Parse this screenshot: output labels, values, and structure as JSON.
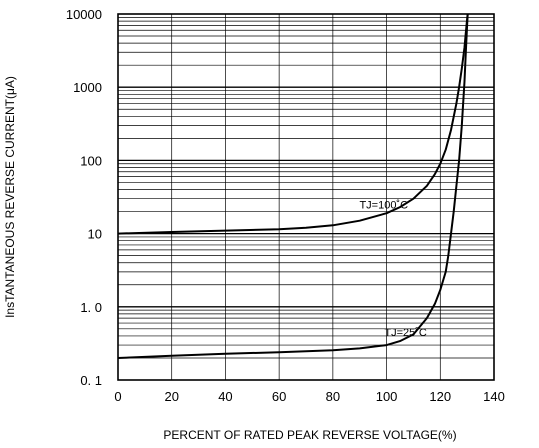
{
  "chart_data": {
    "type": "line",
    "xlabel": "PERCENT OF RATED PEAK REVERSE VOLTAGE(%)",
    "ylabel": "InsTANTANEOUS REVERSE CURRENT(μA)",
    "x_ticks": [
      "0",
      "20",
      "40",
      "60",
      "80",
      "100",
      "120",
      "140"
    ],
    "y_ticks": [
      "0. 1",
      "1. 0",
      "10",
      "100",
      "1000",
      "10000"
    ],
    "xlim": [
      0,
      140
    ],
    "ylim": [
      0.1,
      10000
    ],
    "y_scale": "log",
    "grid": true,
    "series": [
      {
        "name": "TJ=100˚C",
        "x": [
          0,
          20,
          40,
          60,
          70,
          80,
          90,
          100,
          105,
          110,
          115,
          118,
          120,
          122,
          124,
          126,
          127,
          128,
          129,
          129.5,
          130,
          130.2
        ],
        "y": [
          10,
          10.5,
          11,
          11.5,
          12,
          13,
          15,
          19,
          23,
          30,
          45,
          65,
          90,
          140,
          260,
          600,
          1000,
          1800,
          3500,
          5500,
          8500,
          10000
        ]
      },
      {
        "name": "TJ=25˚C",
        "x": [
          0,
          20,
          40,
          60,
          80,
          90,
          100,
          105,
          110,
          115,
          118,
          120,
          122,
          123,
          124,
          125,
          126,
          127,
          128,
          129,
          129.5,
          130,
          130.2
        ],
        "y": [
          0.2,
          0.215,
          0.228,
          0.24,
          0.255,
          0.27,
          0.3,
          0.34,
          0.42,
          0.7,
          1.1,
          1.7,
          3,
          5,
          10,
          20,
          45,
          100,
          300,
          1200,
          3000,
          7000,
          10000
        ]
      }
    ],
    "annotations": [
      {
        "text": "TJ=100˚C",
        "x": 108,
        "y": 25
      },
      {
        "text": "TJ=25˚C",
        "x": 115,
        "y": 0.45
      }
    ]
  }
}
